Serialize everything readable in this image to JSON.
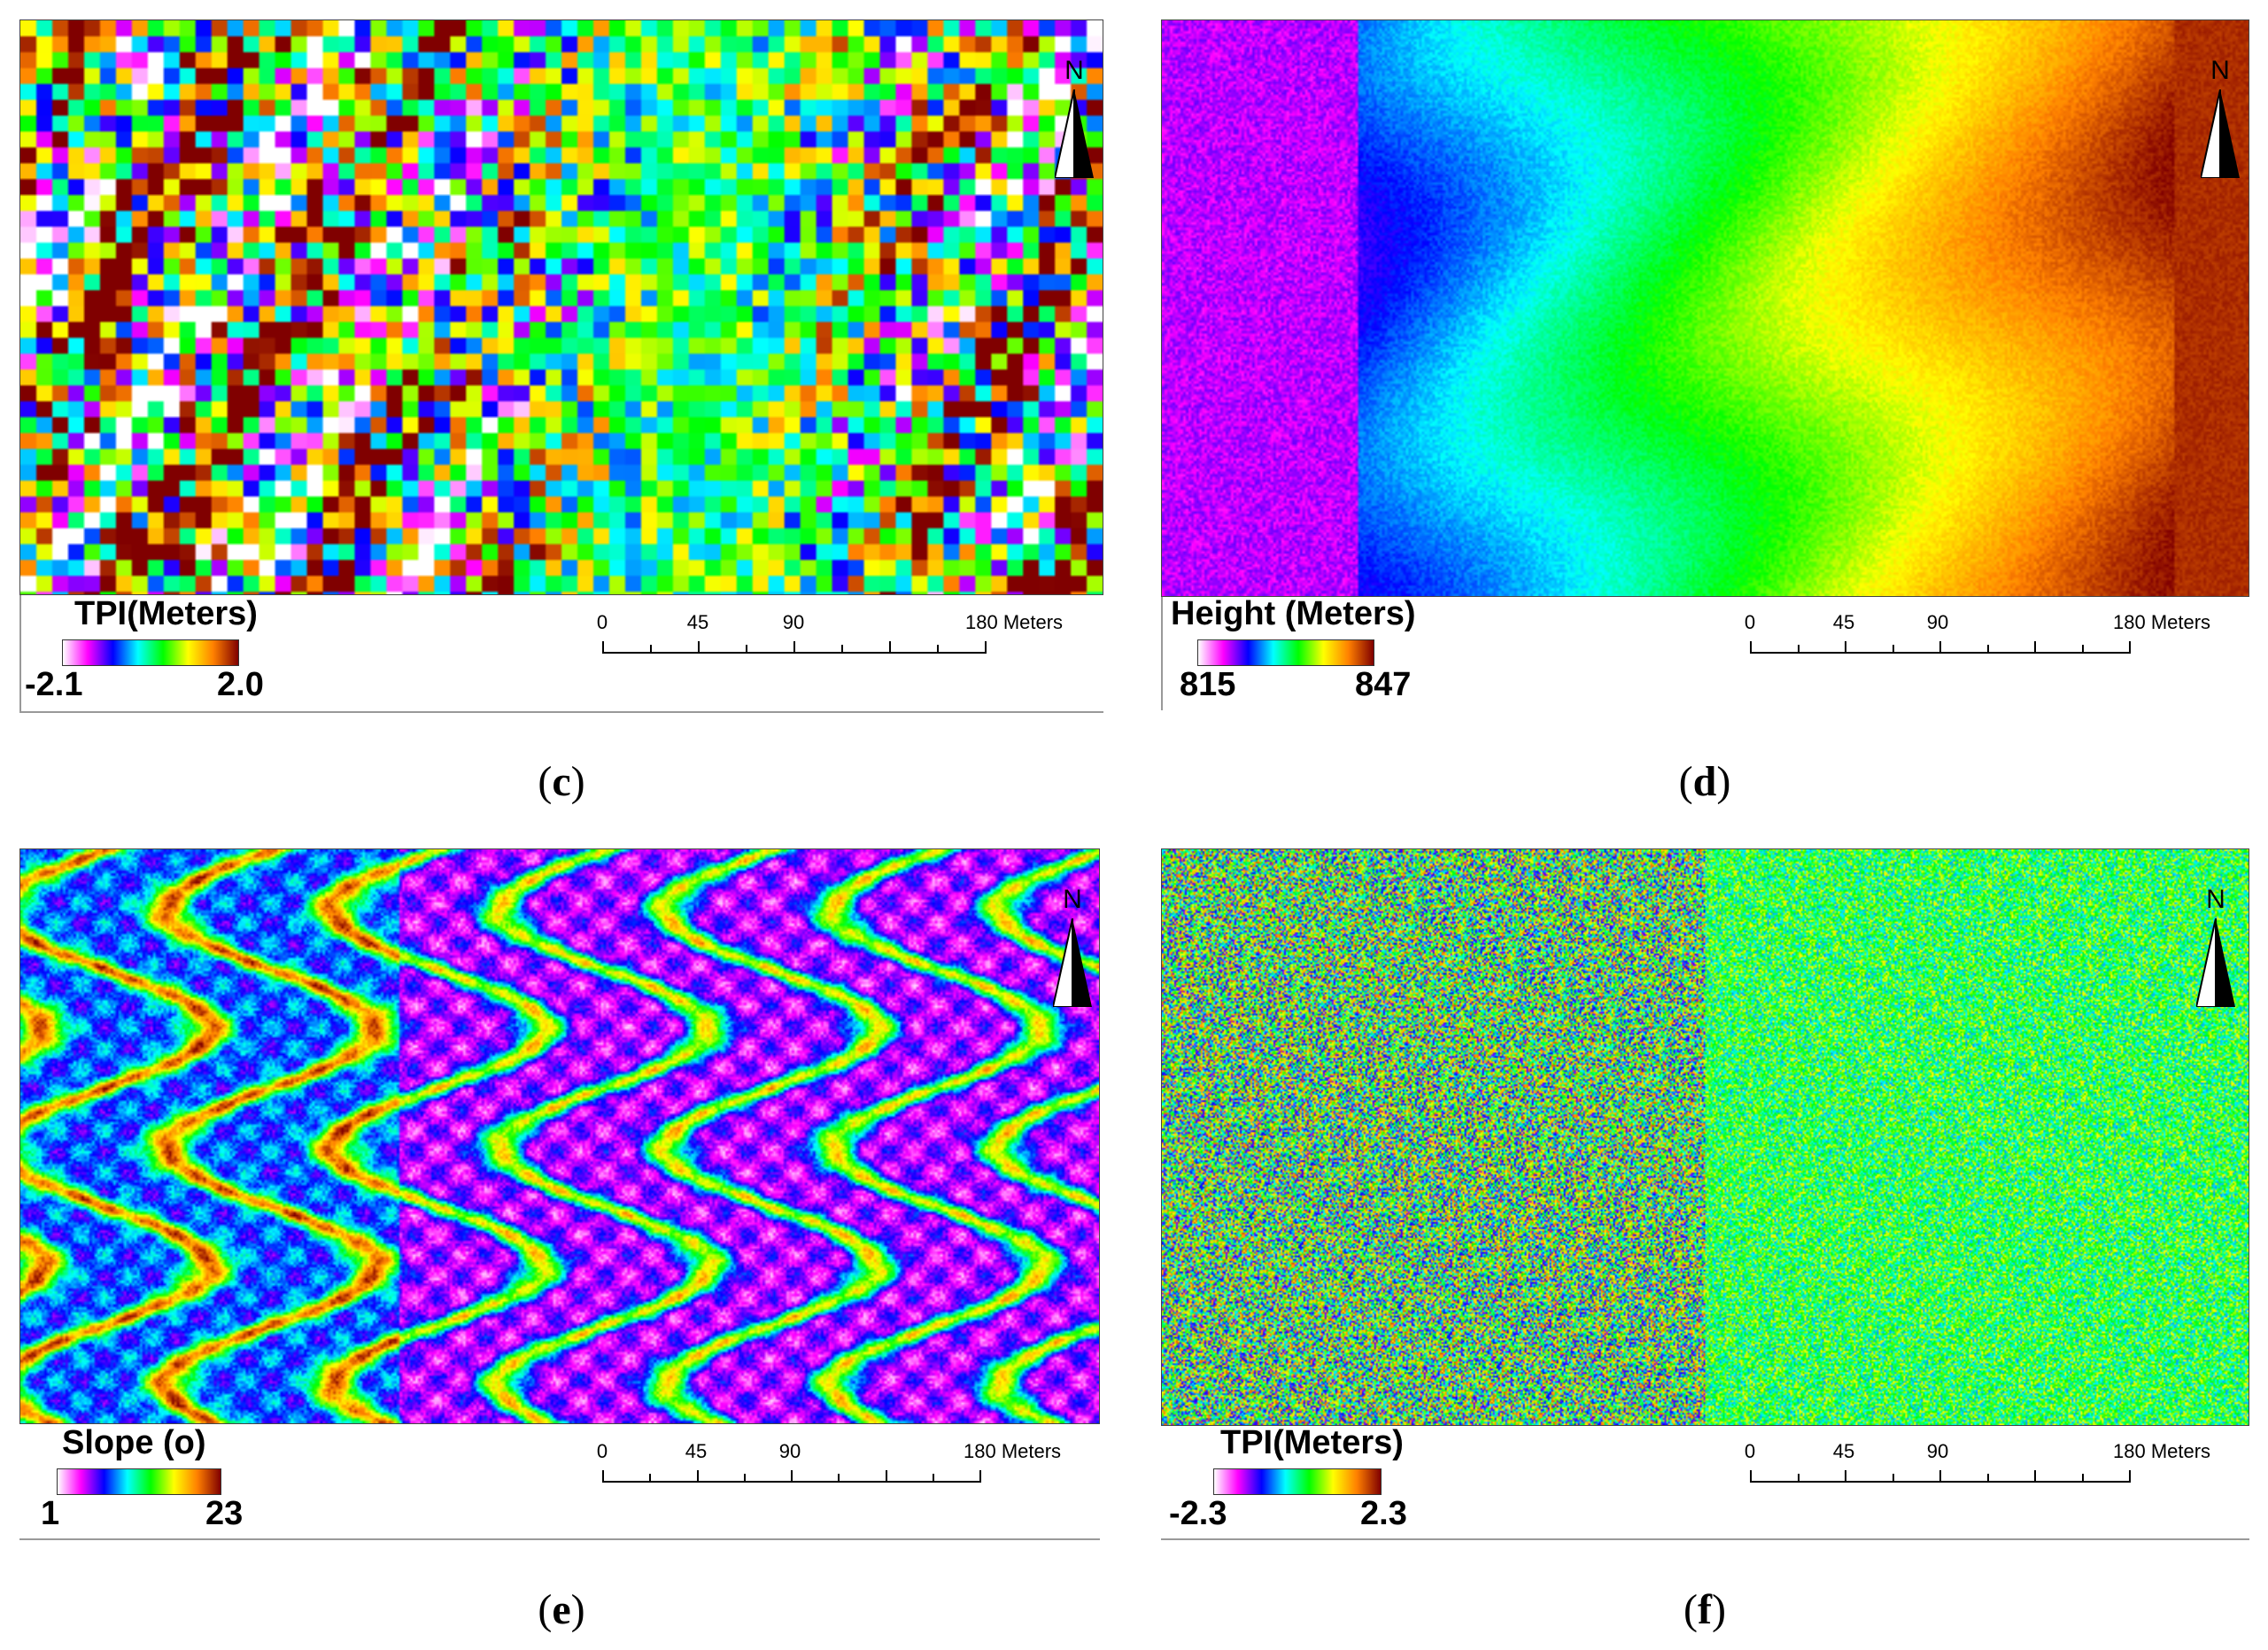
{
  "north_label": "N",
  "panels": [
    {
      "id": "c",
      "caption_open": "(",
      "caption_letter": "c",
      "caption_close": ")",
      "legend_title": "TPI(Meters)",
      "legend_min": "-2.1",
      "legend_max": "2.0",
      "ramp_colors": [
        "#ffffff",
        "#ff00ff",
        "#0000ff",
        "#00ffff",
        "#00ff00",
        "#ffff00",
        "#ff8000",
        "#800000"
      ],
      "scale_labels": [
        "0",
        "45",
        "90",
        "180 Meters"
      ]
    },
    {
      "id": "d",
      "caption_open": "(",
      "caption_letter": "d",
      "caption_close": ")",
      "legend_title": "Height (Meters)",
      "legend_min": "815",
      "legend_max": "847",
      "ramp_colors": [
        "#ffffff",
        "#ff00ff",
        "#0000ff",
        "#00ffff",
        "#00ff00",
        "#ffff00",
        "#ff8000",
        "#800000"
      ],
      "scale_labels": [
        "0",
        "45",
        "90",
        "180 Meters"
      ]
    },
    {
      "id": "e",
      "caption_open": "(",
      "caption_letter": "e",
      "caption_close": ")",
      "legend_title": "Slope (o)",
      "legend_min": "1",
      "legend_max": "23",
      "ramp_colors": [
        "#ffffff",
        "#ff00ff",
        "#0000ff",
        "#00ffff",
        "#00ff00",
        "#ffff00",
        "#ff8000",
        "#800000"
      ],
      "scale_labels": [
        "0",
        "45",
        "90",
        "180 Meters"
      ]
    },
    {
      "id": "f",
      "caption_open": "(",
      "caption_letter": "f",
      "caption_close": ")",
      "legend_title": "TPI(Meters)",
      "legend_min": "-2.3",
      "legend_max": "2.3",
      "ramp_colors": [
        "#ffffff",
        "#ff00ff",
        "#0000ff",
        "#00ffff",
        "#00ff00",
        "#ffff00",
        "#ff8000",
        "#800000"
      ],
      "scale_labels": [
        "0",
        "45",
        "90",
        "180 Meters"
      ]
    }
  ]
}
